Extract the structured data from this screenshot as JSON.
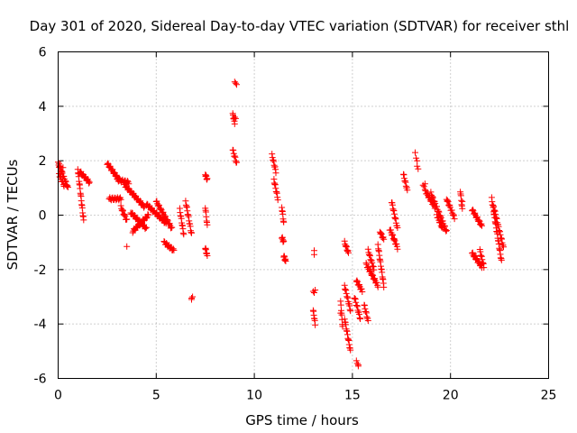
{
  "chart_data": {
    "type": "scatter",
    "title": "Day 301 of 2020, Sidereal Day-to-day VTEC variation (SDTVAR) for receiver sthl",
    "xlabel": "GPS time / hours",
    "ylabel": "SDTVAR / TECUs",
    "xlim": [
      0,
      25
    ],
    "ylim": [
      -6,
      6
    ],
    "xticks": [
      "0",
      "5",
      "10",
      "15",
      "20",
      "25"
    ],
    "yticks": [
      "-6",
      "-4",
      "-2",
      "0",
      "2",
      "4",
      "6"
    ],
    "grid": true,
    "marker": "plus",
    "series_color": "#ff0000",
    "segments": [
      [
        0.0,
        0.5,
        1.9,
        1.0
      ],
      [
        0.05,
        0.3,
        1.5,
        1.1
      ],
      [
        1.0,
        1.3,
        1.7,
        -0.2
      ],
      [
        1.1,
        1.6,
        1.6,
        1.2
      ],
      [
        2.5,
        3.1,
        1.9,
        1.3
      ],
      [
        2.6,
        3.2,
        0.6,
        0.6
      ],
      [
        3.0,
        3.6,
        1.3,
        1.2
      ],
      [
        3.2,
        3.5,
        0.3,
        -0.2
      ],
      [
        3.4,
        4.4,
        1.1,
        0.3
      ],
      [
        3.7,
        4.5,
        0.1,
        -0.5
      ],
      [
        3.8,
        4.6,
        -0.6,
        0.0
      ],
      [
        4.5,
        5.5,
        0.4,
        -0.3
      ],
      [
        5.0,
        5.8,
        0.5,
        -0.5
      ],
      [
        5.4,
        5.9,
        -1.0,
        -1.3
      ],
      [
        6.2,
        6.4,
        0.2,
        -0.7
      ],
      [
        6.5,
        6.8,
        0.5,
        -0.7
      ],
      [
        7.5,
        7.6,
        1.5,
        1.3
      ],
      [
        7.5,
        7.6,
        0.3,
        -0.4
      ],
      [
        7.5,
        7.6,
        -1.2,
        -1.5
      ],
      [
        8.9,
        9.1,
        2.4,
        1.9
      ],
      [
        8.9,
        9.0,
        3.7,
        3.4
      ],
      [
        10.9,
        11.1,
        2.2,
        1.6
      ],
      [
        11.0,
        11.2,
        1.3,
        0.6
      ],
      [
        11.4,
        11.5,
        0.3,
        -0.3
      ],
      [
        11.4,
        11.5,
        -0.8,
        -1.0
      ],
      [
        11.5,
        11.6,
        -1.5,
        -1.7
      ],
      [
        13.0,
        13.1,
        -3.5,
        -4.0
      ],
      [
        14.4,
        14.5,
        -3.2,
        -4.1
      ],
      [
        14.6,
        14.8,
        -1.0,
        -1.4
      ],
      [
        14.6,
        14.9,
        -2.6,
        -3.5
      ],
      [
        14.6,
        14.9,
        -3.8,
        -5.0
      ],
      [
        15.1,
        15.4,
        -3.0,
        -3.8
      ],
      [
        15.2,
        15.5,
        -2.4,
        -2.8
      ],
      [
        15.6,
        15.8,
        -3.3,
        -3.9
      ],
      [
        15.7,
        16.3,
        -1.8,
        -2.6
      ],
      [
        15.8,
        16.1,
        -1.3,
        -2.0
      ],
      [
        16.3,
        16.6,
        -1.1,
        -2.6
      ],
      [
        16.4,
        16.6,
        -0.6,
        -0.9
      ],
      [
        16.9,
        17.3,
        -0.5,
        -1.2
      ],
      [
        17.0,
        17.3,
        0.5,
        -0.5
      ],
      [
        17.6,
        17.8,
        1.5,
        0.9
      ],
      [
        18.7,
        19.2,
        0.9,
        0.3
      ],
      [
        19.0,
        19.8,
        0.8,
        -0.6
      ],
      [
        19.3,
        19.6,
        0.0,
        -0.5
      ],
      [
        19.8,
        20.2,
        0.6,
        -0.1
      ],
      [
        20.5,
        20.6,
        0.9,
        0.2
      ],
      [
        21.1,
        21.6,
        0.2,
        -0.4
      ],
      [
        21.1,
        21.6,
        -1.4,
        -1.9
      ],
      [
        21.5,
        21.7,
        -1.3,
        -1.9
      ],
      [
        22.1,
        22.6,
        0.6,
        -1.7
      ],
      [
        22.2,
        22.7,
        0.3,
        -1.2
      ]
    ],
    "points": [
      [
        0.05,
        1.9
      ],
      [
        0.1,
        1.8
      ],
      [
        0.2,
        1.6
      ],
      [
        0.25,
        1.75
      ],
      [
        3.5,
        -1.15
      ],
      [
        6.8,
        -3.05
      ],
      [
        6.8,
        -3.1
      ],
      [
        6.85,
        -3.0
      ],
      [
        9.0,
        4.9
      ],
      [
        9.05,
        4.85
      ],
      [
        9.1,
        4.8
      ],
      [
        9.0,
        3.6
      ],
      [
        9.05,
        3.55
      ],
      [
        13.05,
        -1.3
      ],
      [
        13.05,
        -1.45
      ],
      [
        13.0,
        -2.8
      ],
      [
        13.05,
        -2.85
      ],
      [
        13.1,
        -2.75
      ],
      [
        14.4,
        -3.6
      ],
      [
        15.2,
        -5.35
      ],
      [
        15.25,
        -5.45
      ],
      [
        15.3,
        -5.5
      ],
      [
        15.3,
        -5.55
      ],
      [
        18.2,
        2.3
      ],
      [
        18.25,
        2.1
      ],
      [
        18.3,
        2.0
      ],
      [
        18.3,
        1.8
      ],
      [
        18.35,
        1.7
      ],
      [
        18.6,
        1.1
      ],
      [
        18.65,
        1.05
      ],
      [
        18.7,
        1.15
      ],
      [
        20.6,
        0.5
      ],
      [
        21.3,
        -1.5
      ]
    ]
  }
}
